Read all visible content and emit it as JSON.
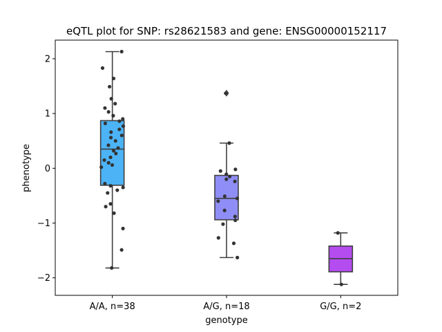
{
  "chart_data": {
    "type": "box",
    "title": "eQTL plot for SNP: rs28621583 and gene: ENSG00000152117",
    "xlabel": "genotype",
    "ylabel": "phenotype",
    "ylim": [
      -2.32,
      2.34
    ],
    "yticks": [
      2,
      1,
      0,
      -1,
      -2
    ],
    "ytick_labels": [
      "2",
      "1",
      "0",
      "−1",
      "−2"
    ],
    "grid": false,
    "categories": [
      "A/A, n=38",
      "A/G, n=18",
      "G/G, n=2"
    ],
    "colors": [
      "#4cb3f6",
      "#8f8ef6",
      "#b54cf0"
    ],
    "groups": [
      {
        "label": "A/A, n=38",
        "q1": -0.31,
        "median": 0.35,
        "q3": 0.87,
        "whisker_low": -1.82,
        "whisker_high": 2.13,
        "outliers": [],
        "points": [
          2.13,
          1.83,
          1.64,
          1.49,
          1.27,
          1.18,
          1.1,
          1.03,
          0.96,
          0.9,
          0.86,
          0.82,
          0.77,
          0.71,
          0.66,
          0.6,
          0.56,
          0.5,
          0.42,
          0.37,
          0.32,
          0.27,
          0.2,
          0.15,
          0.1,
          0.06,
          0.02,
          -0.28,
          -0.32,
          -0.35,
          -0.4,
          -0.45,
          -0.65,
          -0.7,
          -0.82,
          -1.1,
          -1.49,
          -1.82
        ]
      },
      {
        "label": "A/G, n=18",
        "q1": -0.94,
        "median": -0.55,
        "q3": -0.13,
        "whisker_low": -1.63,
        "whisker_high": 0.46,
        "outliers": [
          1.37
        ],
        "points": [
          0.46,
          -0.02,
          -0.05,
          -0.11,
          -0.15,
          -0.2,
          -0.24,
          -0.51,
          -0.55,
          -0.6,
          -0.77,
          -0.88,
          -0.95,
          -1.02,
          -1.27,
          -1.37,
          -1.63,
          1.37
        ]
      },
      {
        "label": "G/G, n=2",
        "q1": -1.89,
        "median": -1.65,
        "q3": -1.42,
        "whisker_low": -2.12,
        "whisker_high": -1.18,
        "outliers": [],
        "points": [
          -1.18,
          -2.12
        ]
      }
    ]
  }
}
